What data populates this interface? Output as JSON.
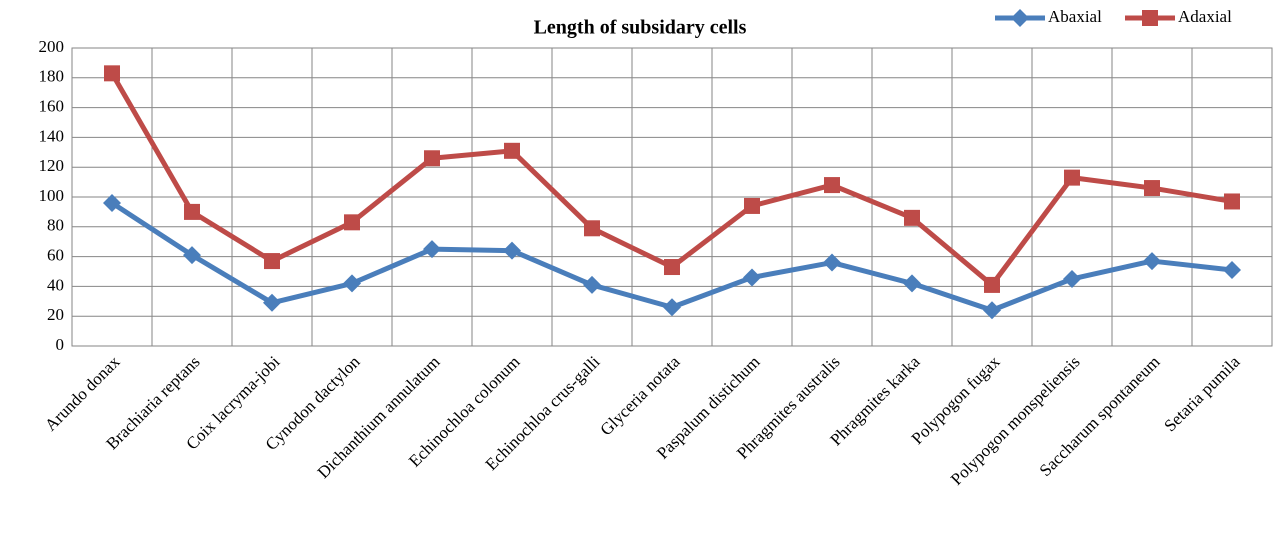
{
  "chart_data": {
    "type": "line",
    "title": "Length of subsidary cells",
    "categories": [
      "Arundo donax",
      "Brachiaria reptans",
      "Coix lacryma-jobi",
      "Cynodon dactylon",
      "Dichanthium annulatum",
      "Echinochloa colonum",
      "Echinochloa crus-galli",
      "Glyceria notata",
      "Paspalum distichum",
      "Phragmites australis",
      "Phragmites karka",
      "Polypogon fugax",
      "Polypogon monspeliensis",
      "Saccharum spontaneum",
      "Setaria pumila"
    ],
    "series": [
      {
        "name": "Abaxial",
        "color": "#4a7ebb",
        "marker": "diamond",
        "values": [
          96,
          61,
          29,
          42,
          65,
          64,
          41,
          26,
          46,
          56,
          42,
          24,
          45,
          57,
          51
        ]
      },
      {
        "name": "Adaxial",
        "color": "#be4b48",
        "marker": "square",
        "values": [
          183,
          90,
          57,
          83,
          126,
          131,
          79,
          53,
          94,
          108,
          86,
          41,
          113,
          106,
          97
        ]
      }
    ],
    "ylim": [
      0,
      200
    ],
    "yticks": [
      0,
      20,
      40,
      60,
      80,
      100,
      120,
      140,
      160,
      180,
      200
    ],
    "grid": true,
    "legend": "top-right"
  }
}
